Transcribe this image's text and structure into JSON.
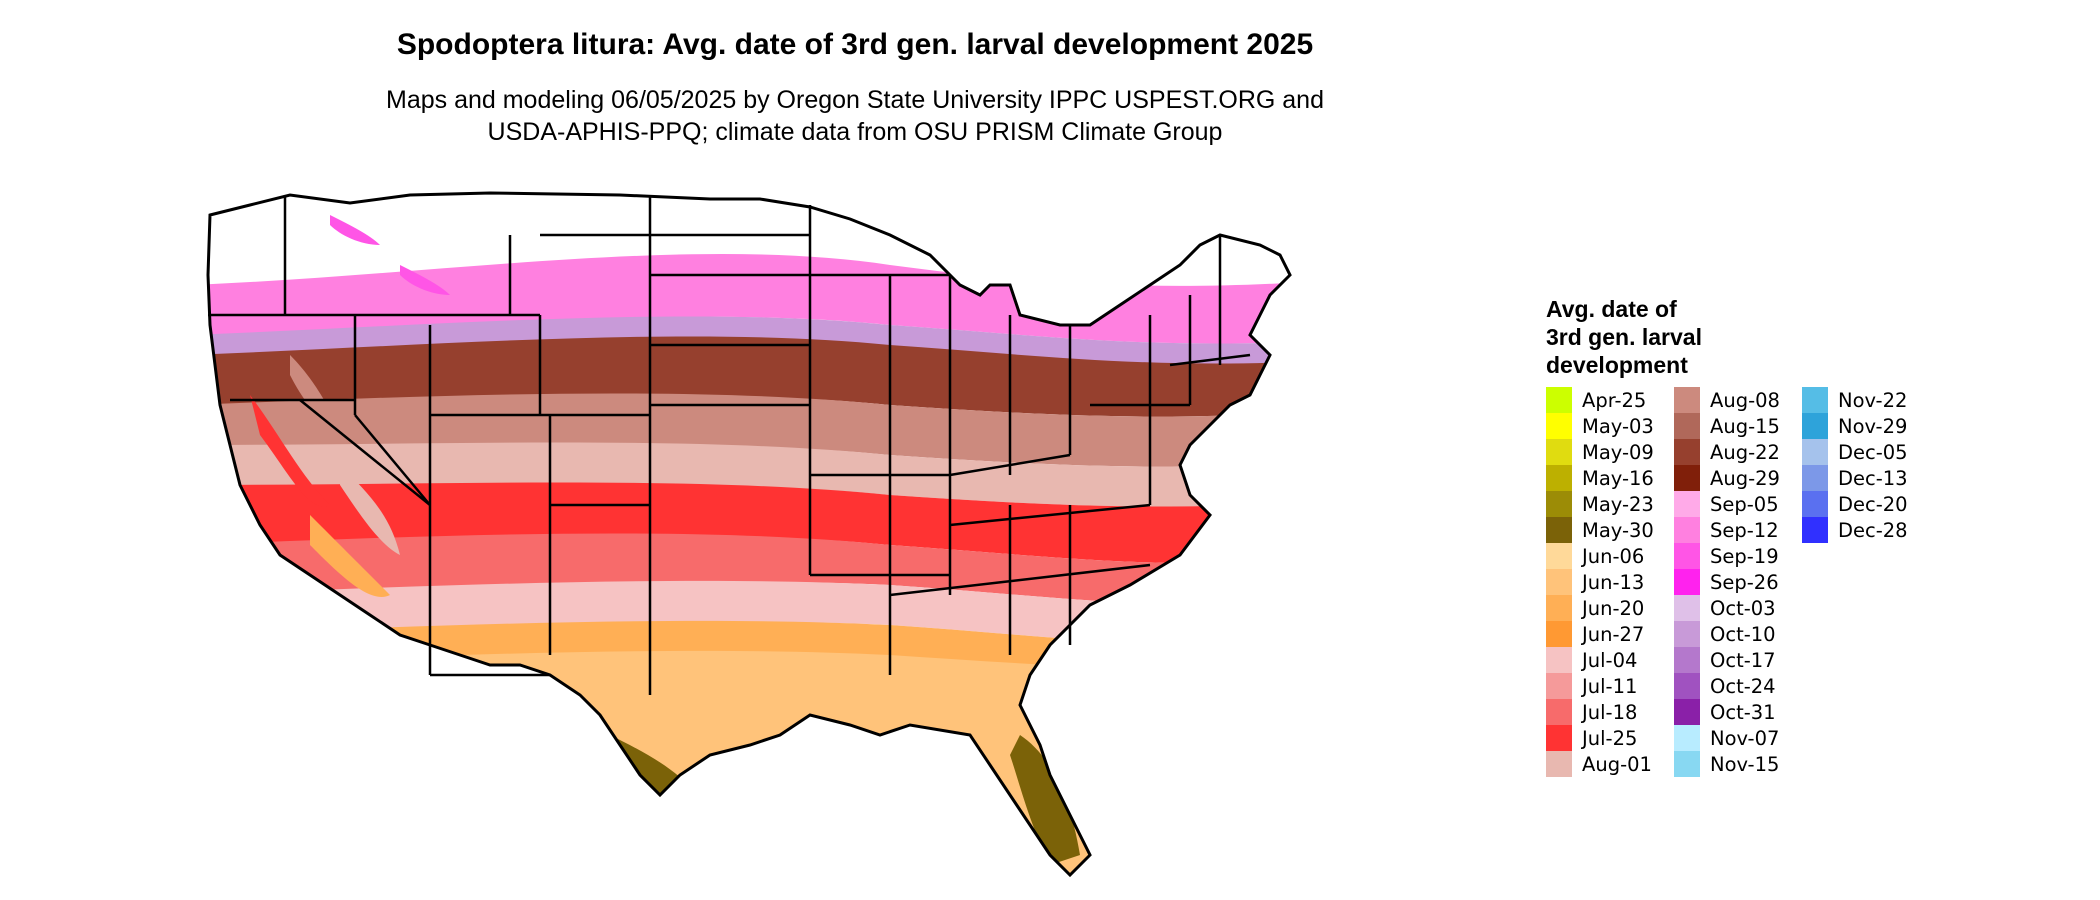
{
  "title": "Spodoptera litura: Avg. date of 3rd gen. larval development 2025",
  "subtitle_line1": "Maps and modeling 06/05/2025 by Oregon State University IPPC USPEST.ORG and",
  "subtitle_line2": "USDA-APHIS-PPQ; climate data from OSU PRISM Climate Group",
  "legend": {
    "title_lines": [
      "Avg. date of",
      "3rd gen. larval",
      "development"
    ],
    "items": [
      {
        "label": "Apr-25",
        "color": "#ccff00"
      },
      {
        "label": "May-03",
        "color": "#ffff00"
      },
      {
        "label": "May-09",
        "color": "#e0dc10"
      },
      {
        "label": "May-16",
        "color": "#bdb000"
      },
      {
        "label": "May-23",
        "color": "#9c8c06"
      },
      {
        "label": "May-30",
        "color": "#7b6208"
      },
      {
        "label": "Jun-06",
        "color": "#ffd999"
      },
      {
        "label": "Jun-13",
        "color": "#ffc37a"
      },
      {
        "label": "Jun-20",
        "color": "#ffaf55"
      },
      {
        "label": "Jun-27",
        "color": "#ff9933"
      },
      {
        "label": "Jul-04",
        "color": "#f6c3c3"
      },
      {
        "label": "Jul-11",
        "color": "#f59a9a"
      },
      {
        "label": "Jul-18",
        "color": "#f76b6b"
      },
      {
        "label": "Jul-25",
        "color": "#ff3333"
      },
      {
        "label": "Aug-01",
        "color": "#e8b8b0"
      },
      {
        "label": "Aug-08",
        "color": "#cc8a7e"
      },
      {
        "label": "Aug-15",
        "color": "#b0685a"
      },
      {
        "label": "Aug-22",
        "color": "#96402e"
      },
      {
        "label": "Aug-29",
        "color": "#801f0a"
      },
      {
        "label": "Sep-05",
        "color": "#ffaae8"
      },
      {
        "label": "Sep-12",
        "color": "#ff80e0"
      },
      {
        "label": "Sep-19",
        "color": "#ff55e6"
      },
      {
        "label": "Sep-26",
        "color": "#ff22ee"
      },
      {
        "label": "Oct-03",
        "color": "#dfc0e8"
      },
      {
        "label": "Oct-10",
        "color": "#c89ad8"
      },
      {
        "label": "Oct-17",
        "color": "#b478cc"
      },
      {
        "label": "Oct-24",
        "color": "#a052c0"
      },
      {
        "label": "Oct-31",
        "color": "#8a20a8"
      },
      {
        "label": "Nov-07",
        "color": "#b8ecff"
      },
      {
        "label": "Nov-15",
        "color": "#88d8f2"
      },
      {
        "label": "Nov-22",
        "color": "#55bde6"
      },
      {
        "label": "Nov-29",
        "color": "#2ea3da"
      },
      {
        "label": "Dec-05",
        "color": "#a5c2ec"
      },
      {
        "label": "Dec-13",
        "color": "#7c98e8"
      },
      {
        "label": "Dec-20",
        "color": "#5a70f0"
      },
      {
        "label": "Dec-28",
        "color": "#3030ff"
      }
    ]
  }
}
